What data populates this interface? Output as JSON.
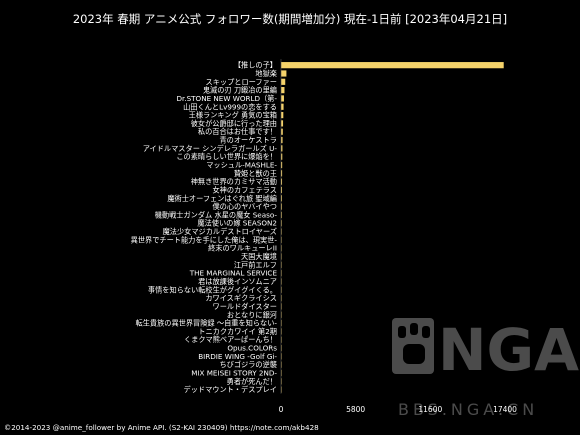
{
  "chart_data": {
    "type": "bar",
    "orientation": "horizontal",
    "title": "2023年 春期 アニメ公式 フォロワー数(期間増加分) 現在-1日前 [2023年04月21日]",
    "xlim": [
      0,
      17400
    ],
    "xticks": [
      0,
      5800,
      11600,
      17400
    ],
    "grid": false,
    "bar_color": "#f5d26a",
    "background": "#000000",
    "categories": [
      "【推しの子】",
      "地獄楽",
      "スキップとローファー",
      "鬼滅の刃 刀鍛冶の里編",
      "Dr.STONE NEW WORLD（第-",
      "山田くんとLv999の恋をする",
      "王様ランキング 勇気の宝箱",
      "彼女が公爵邸に行った理由",
      "私の百合はお仕事です！",
      "青のオーケストラ",
      "アイドルマスター シンデレラガールズ U-",
      "この素晴らしい世界に爆焔を！",
      "マッシュル-MASHLE-",
      "贄姫と獣の王",
      "神無き世界のカミサマ活動",
      "女神のカフェテラス",
      "魔術士オーフェンはぐれ旅 聖域編",
      "僕の心のヤバイやつ",
      "機動戦士ガンダム 水星の魔女 Seaso-",
      "魔法使いの嫁 SEASON2",
      "魔法少女マジカルデストロイヤーズ",
      "異世界でチート能力を手にした俺は、現実世-",
      "終末のワルキューレII",
      "天国大魔境",
      "江戸前エルフ",
      "THE MARGINAL SERVICE",
      "君は放課後インソムニア",
      "事情を知らない転校生がグイグイくる。",
      "カワイスギクライシス",
      "ワールドダイスター",
      "おとなりに銀河",
      "転生貴族の異世界冒険録 ～自重を知らない-",
      "トニカクカワイイ 第2期",
      "くまクマ熊ベアーぱーんち！",
      "Opus.COLORs",
      "BIRDIE WING -Golf Gi-",
      "ちびゴジラの逆襲",
      "MIX MEISEI STORY 2ND-",
      "勇者が死んだ！",
      "デッドマウント・デスプレイ"
    ],
    "values": [
      17300,
      420,
      330,
      270,
      230,
      200,
      180,
      160,
      140,
      120,
      110,
      100,
      90,
      85,
      80,
      75,
      70,
      65,
      60,
      55,
      50,
      45,
      42,
      40,
      38,
      35,
      32,
      30,
      28,
      26,
      24,
      22,
      20,
      18,
      16,
      14,
      12,
      10,
      8,
      6
    ]
  },
  "footer": "©2014-2023 @anime_follower by Anime API. (S2-KAI 230409) https://note.com/akb428",
  "watermark": {
    "main": "NGA",
    "sub": "BBS.NGA.CN"
  }
}
